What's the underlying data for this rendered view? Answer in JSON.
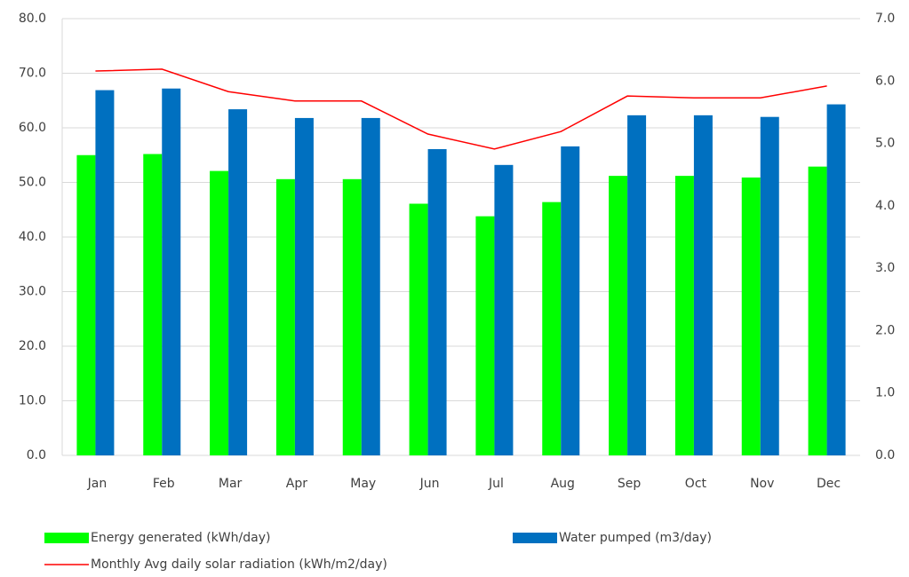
{
  "chart_data": {
    "type": "bar",
    "categories": [
      "Jan",
      "Feb",
      "Mar",
      "Apr",
      "May",
      "Jun",
      "Jul",
      "Aug",
      "Sep",
      "Oct",
      "Nov",
      "Dec"
    ],
    "series": [
      {
        "name": "Energy generated (kWh/day)",
        "color": "#00ff00",
        "values": [
          55.0,
          55.2,
          52.1,
          50.6,
          50.6,
          46.1,
          43.8,
          46.4,
          51.2,
          51.2,
          50.9,
          52.9
        ]
      },
      {
        "name": "Water pumped (m3/day)",
        "color": "#0070c0",
        "values": [
          66.9,
          67.2,
          63.4,
          61.8,
          61.8,
          56.1,
          53.2,
          56.6,
          62.3,
          62.3,
          62.0,
          64.3
        ]
      },
      {
        "name": "Monthly Avg daily solar radiation (kWh/m2/day)",
        "color": "#ff0000",
        "type": "line",
        "axis": "y2",
        "values": [
          6.16,
          6.19,
          5.83,
          5.68,
          5.68,
          5.15,
          4.91,
          5.19,
          5.76,
          5.73,
          5.73,
          5.92
        ]
      }
    ],
    "ylim": [
      0,
      80
    ],
    "yticks": [
      {
        "value": 0,
        "label": "0.0"
      },
      {
        "value": 10,
        "label": "10.0"
      },
      {
        "value": 20,
        "label": "20.0"
      },
      {
        "value": 30,
        "label": "30.0"
      },
      {
        "value": 40,
        "label": "40.0"
      },
      {
        "value": 50,
        "label": "50.0"
      },
      {
        "value": 60,
        "label": "60.0"
      },
      {
        "value": 70,
        "label": "70.0"
      },
      {
        "value": 80,
        "label": "80.0"
      }
    ],
    "y2lim": [
      0,
      7
    ],
    "y2ticks": [
      {
        "value": 0,
        "label": "0.0"
      },
      {
        "value": 1,
        "label": "1.0"
      },
      {
        "value": 2,
        "label": "2.0"
      },
      {
        "value": 3,
        "label": "3.0"
      },
      {
        "value": 4,
        "label": "4.0"
      },
      {
        "value": 5,
        "label": "5.0"
      },
      {
        "value": 6,
        "label": "6.0"
      },
      {
        "value": 7,
        "label": "7.0"
      }
    ],
    "grid": true,
    "legend": "bottom"
  }
}
